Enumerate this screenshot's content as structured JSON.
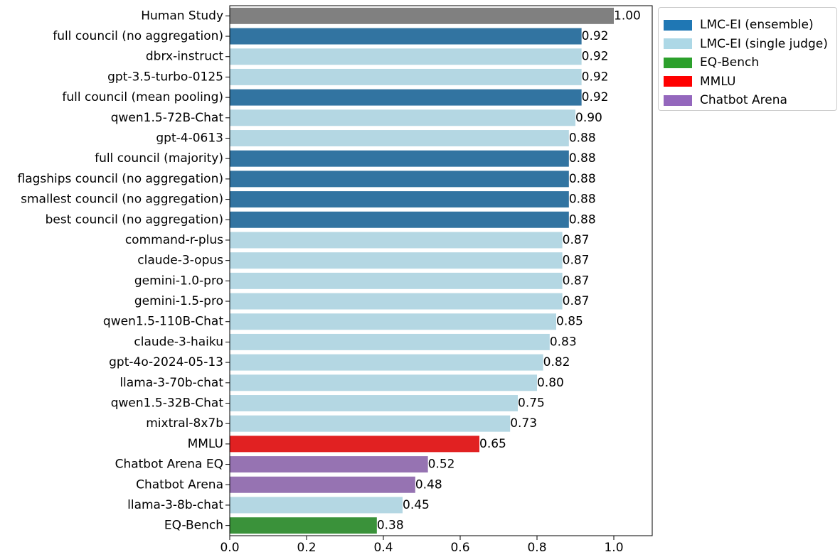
{
  "chart_data": {
    "type": "bar",
    "orientation": "horizontal",
    "xlim": [
      0,
      1.1
    ],
    "xticks": [
      "0.0",
      "0.2",
      "0.4",
      "0.6",
      "0.8",
      "1.0"
    ],
    "grid": false,
    "legend_position": "outside-top-right",
    "title": "",
    "xlabel": "",
    "ylabel": "",
    "legend": [
      {
        "label": "LMC-EI (ensemble)",
        "color": "#1f77b4"
      },
      {
        "label": "LMC-EI (single judge)",
        "color": "#add8e6"
      },
      {
        "label": "EQ-Bench",
        "color": "#2ca02c"
      },
      {
        "label": "MMLU",
        "color": "#ff0000"
      },
      {
        "label": "Chatbot Arena",
        "color": "#9467bd"
      }
    ],
    "bars": [
      {
        "label": "Human Study",
        "value": 1.0,
        "value_label": "1.00",
        "color": "#808080"
      },
      {
        "label": "full council (no aggregation)",
        "value": 0.916,
        "value_label": "0.92",
        "color": "#3274a1"
      },
      {
        "label": "dbrx-instruct",
        "value": 0.916,
        "value_label": "0.92",
        "color": "#b4d7e3"
      },
      {
        "label": "gpt-3.5-turbo-0125",
        "value": 0.916,
        "value_label": "0.92",
        "color": "#b4d7e3"
      },
      {
        "label": "full council (mean pooling)",
        "value": 0.916,
        "value_label": "0.92",
        "color": "#3274a1"
      },
      {
        "label": "qwen1.5-72B-Chat",
        "value": 0.9,
        "value_label": "0.90",
        "color": "#b4d7e3"
      },
      {
        "label": "gpt-4-0613",
        "value": 0.883,
        "value_label": "0.88",
        "color": "#b4d7e3"
      },
      {
        "label": "full council (majority)",
        "value": 0.883,
        "value_label": "0.88",
        "color": "#3274a1"
      },
      {
        "label": "flagships council (no aggregation)",
        "value": 0.883,
        "value_label": "0.88",
        "color": "#3274a1"
      },
      {
        "label": "smallest council (no aggregation)",
        "value": 0.883,
        "value_label": "0.88",
        "color": "#3274a1"
      },
      {
        "label": "best council (no aggregation)",
        "value": 0.883,
        "value_label": "0.88",
        "color": "#3274a1"
      },
      {
        "label": "command-r-plus",
        "value": 0.866,
        "value_label": "0.87",
        "color": "#b4d7e3"
      },
      {
        "label": "claude-3-opus",
        "value": 0.866,
        "value_label": "0.87",
        "color": "#b4d7e3"
      },
      {
        "label": "gemini-1.0-pro",
        "value": 0.866,
        "value_label": "0.87",
        "color": "#b4d7e3"
      },
      {
        "label": "gemini-1.5-pro",
        "value": 0.866,
        "value_label": "0.87",
        "color": "#b4d7e3"
      },
      {
        "label": "qwen1.5-110B-Chat",
        "value": 0.85,
        "value_label": "0.85",
        "color": "#b4d7e3"
      },
      {
        "label": "claude-3-haiku",
        "value": 0.833,
        "value_label": "0.83",
        "color": "#b4d7e3"
      },
      {
        "label": "gpt-4o-2024-05-13",
        "value": 0.816,
        "value_label": "0.82",
        "color": "#b4d7e3"
      },
      {
        "label": "llama-3-70b-chat",
        "value": 0.8,
        "value_label": "0.80",
        "color": "#b4d7e3"
      },
      {
        "label": "qwen1.5-32B-Chat",
        "value": 0.75,
        "value_label": "0.75",
        "color": "#b4d7e3"
      },
      {
        "label": "mixtral-8x7b",
        "value": 0.73,
        "value_label": "0.73",
        "color": "#b4d7e3"
      },
      {
        "label": "MMLU",
        "value": 0.65,
        "value_label": "0.65",
        "color": "#e12122"
      },
      {
        "label": "Chatbot Arena EQ",
        "value": 0.516,
        "value_label": "0.52",
        "color": "#9673b2"
      },
      {
        "label": "Chatbot Arena",
        "value": 0.483,
        "value_label": "0.48",
        "color": "#9673b2"
      },
      {
        "label": "llama-3-8b-chat",
        "value": 0.45,
        "value_label": "0.45",
        "color": "#b4d7e3"
      },
      {
        "label": "EQ-Bench",
        "value": 0.383,
        "value_label": "0.38",
        "color": "#3a923a"
      }
    ]
  }
}
